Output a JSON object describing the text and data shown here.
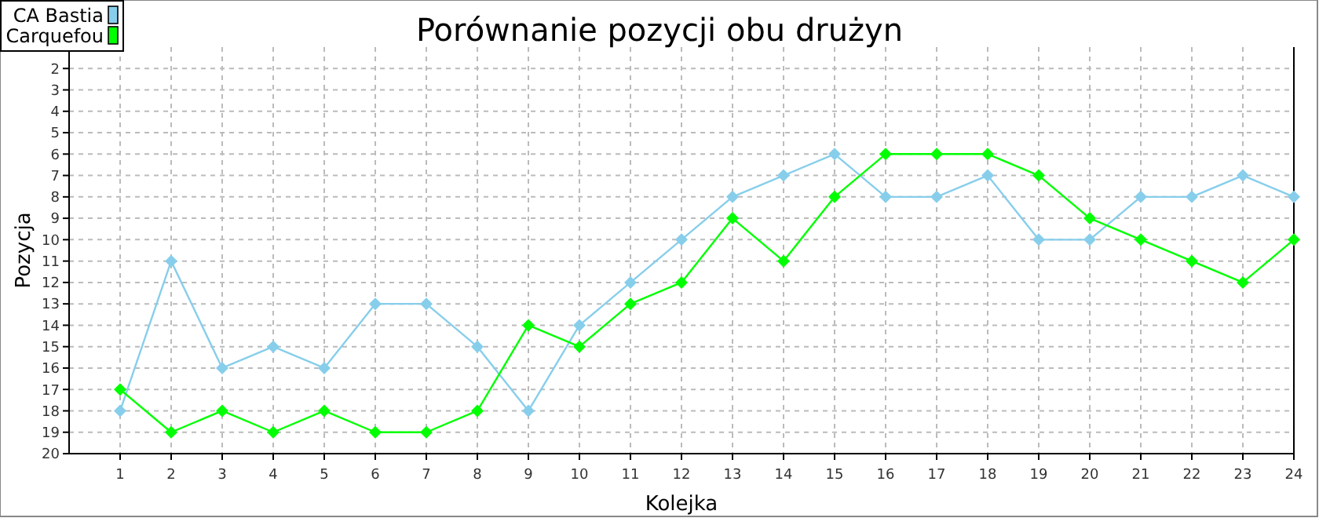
{
  "chart_data": {
    "type": "line",
    "title": "Porównanie pozycji obu drużyn",
    "xlabel": "Kolejka",
    "ylabel": "Pozycja",
    "x": [
      1,
      2,
      3,
      4,
      5,
      6,
      7,
      8,
      9,
      10,
      11,
      12,
      13,
      14,
      15,
      16,
      17,
      18,
      19,
      20,
      21,
      22,
      23,
      24
    ],
    "xlim": [
      0,
      24
    ],
    "xticks": [
      1,
      2,
      3,
      4,
      5,
      6,
      7,
      8,
      9,
      10,
      11,
      12,
      13,
      14,
      15,
      16,
      17,
      18,
      19,
      20,
      21,
      22,
      23,
      24
    ],
    "ylim": [
      20,
      1
    ],
    "yticks": [
      2,
      3,
      4,
      5,
      6,
      7,
      8,
      9,
      10,
      11,
      12,
      13,
      14,
      15,
      16,
      17,
      18,
      19,
      20
    ],
    "grid": true,
    "legend": "top left",
    "marker": "diamond",
    "line_style": "solid",
    "series": [
      {
        "name": "CA Bastia",
        "color": "#87ceeb",
        "values": [
          18,
          11,
          16,
          15,
          16,
          13,
          13,
          15,
          18,
          14,
          12,
          10,
          8,
          7,
          6,
          8,
          8,
          7,
          10,
          10,
          8,
          8,
          7,
          8
        ]
      },
      {
        "name": "Carquefou",
        "color": "#00ff00",
        "values": [
          17,
          19,
          18,
          19,
          18,
          19,
          19,
          18,
          14,
          15,
          13,
          12,
          9,
          11,
          8,
          6,
          6,
          6,
          7,
          9,
          10,
          11,
          12,
          10
        ]
      }
    ]
  }
}
